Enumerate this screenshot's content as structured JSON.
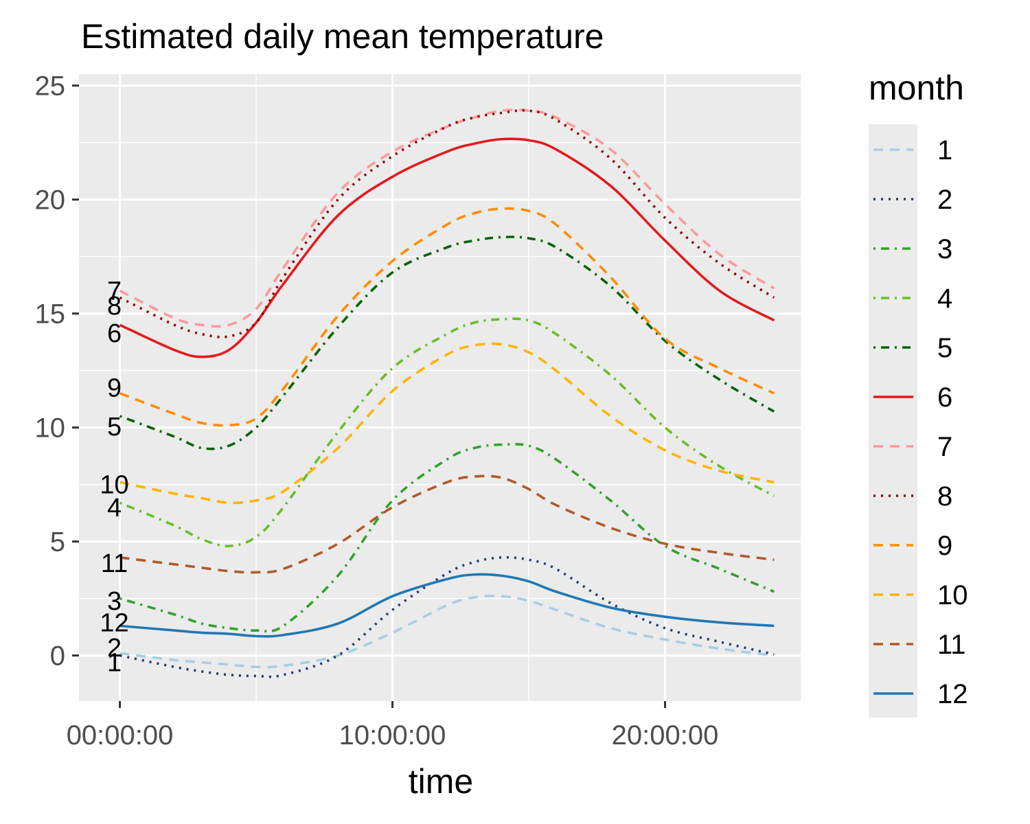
{
  "chart_data": {
    "type": "line",
    "title": "Estimated daily mean temperature",
    "xlabel": "time",
    "ylabel": "",
    "x_unit": "hours",
    "xlim": [
      -1.5,
      25
    ],
    "ylim": [
      -2,
      25.5
    ],
    "y_ticks": [
      0,
      5,
      10,
      15,
      20,
      25
    ],
    "y_tick_labels": [
      "0",
      "5",
      "10",
      "15",
      "20",
      "25"
    ],
    "x_ticks": [
      0,
      10,
      20
    ],
    "x_tick_labels": [
      "00:00:00",
      "10:00:00",
      "20:00:00"
    ],
    "grid": true,
    "legend_title": "month",
    "legend_position": "right",
    "x": [
      0,
      2,
      3,
      4,
      5,
      6,
      8,
      10,
      12,
      13,
      14,
      15,
      16,
      18,
      20,
      22,
      24
    ],
    "series": [
      {
        "name": "1",
        "color": "#a6cee3",
        "dash": "long",
        "label": "1",
        "values": [
          0.1,
          -0.2,
          -0.3,
          -0.4,
          -0.5,
          -0.45,
          0.0,
          1.0,
          2.2,
          2.55,
          2.6,
          2.4,
          2.0,
          1.2,
          0.7,
          0.3,
          0.0
        ]
      },
      {
        "name": "2",
        "color": "#1f3b73",
        "dash": "dotted",
        "label": "2",
        "values": [
          0.0,
          -0.5,
          -0.7,
          -0.85,
          -0.9,
          -0.85,
          0.0,
          2.0,
          3.6,
          4.1,
          4.3,
          4.2,
          3.8,
          2.3,
          1.2,
          0.6,
          0.05
        ]
      },
      {
        "name": "3",
        "color": "#33a02c",
        "dash": "dashdot",
        "label": "3",
        "values": [
          2.5,
          1.8,
          1.4,
          1.2,
          1.1,
          1.3,
          3.5,
          6.8,
          8.6,
          9.1,
          9.25,
          9.2,
          8.6,
          6.8,
          4.8,
          3.8,
          2.8
        ]
      },
      {
        "name": "4",
        "color": "#66bf26",
        "dash": "dashdot",
        "label": "4",
        "values": [
          6.7,
          5.7,
          5.1,
          4.8,
          5.2,
          6.5,
          9.8,
          12.6,
          14.1,
          14.6,
          14.75,
          14.7,
          14.1,
          12.3,
          10.0,
          8.3,
          7.0
        ]
      },
      {
        "name": "5",
        "color": "#006400",
        "dash": "dashdot",
        "label": "5",
        "values": [
          10.5,
          9.6,
          9.1,
          9.2,
          10.0,
          11.4,
          14.4,
          16.8,
          17.9,
          18.2,
          18.35,
          18.3,
          17.9,
          16.2,
          13.8,
          12.1,
          10.7
        ]
      },
      {
        "name": "6",
        "color": "#e31a1c",
        "dash": "solid",
        "label": "6",
        "values": [
          14.5,
          13.4,
          13.1,
          13.4,
          14.6,
          16.3,
          19.3,
          21.0,
          22.1,
          22.45,
          22.65,
          22.6,
          22.2,
          20.6,
          18.2,
          16.0,
          14.7
        ]
      },
      {
        "name": "7",
        "color": "#fb9a99",
        "dash": "long",
        "label": "7",
        "values": [
          16.0,
          14.8,
          14.5,
          14.5,
          15.2,
          17.0,
          20.3,
          22.1,
          23.2,
          23.6,
          23.9,
          23.9,
          23.6,
          22.2,
          19.8,
          17.6,
          16.1
        ]
      },
      {
        "name": "8",
        "color": "#8b0000",
        "dash": "dotted",
        "label": "8",
        "values": [
          15.7,
          14.5,
          14.1,
          14.0,
          14.6,
          16.6,
          20.0,
          21.9,
          23.2,
          23.6,
          23.8,
          23.9,
          23.5,
          21.8,
          19.2,
          17.2,
          15.7
        ]
      },
      {
        "name": "9",
        "color": "#ff8c00",
        "dash": "long",
        "label": "9",
        "values": [
          11.5,
          10.6,
          10.2,
          10.1,
          10.4,
          11.7,
          14.9,
          17.3,
          18.9,
          19.4,
          19.6,
          19.5,
          18.9,
          16.6,
          13.9,
          12.6,
          11.5
        ]
      },
      {
        "name": "10",
        "color": "#ffb300",
        "dash": "long",
        "label": "10",
        "values": [
          7.6,
          7.1,
          6.9,
          6.7,
          6.8,
          7.2,
          9.1,
          11.6,
          13.2,
          13.6,
          13.65,
          13.3,
          12.5,
          10.5,
          9.0,
          8.1,
          7.6
        ]
      },
      {
        "name": "11",
        "color": "#b15928",
        "dash": "long",
        "label": "11",
        "values": [
          4.3,
          4.0,
          3.85,
          3.7,
          3.65,
          3.8,
          4.9,
          6.5,
          7.6,
          7.85,
          7.8,
          7.3,
          6.6,
          5.6,
          4.9,
          4.5,
          4.2
        ]
      },
      {
        "name": "12",
        "color": "#1f78b4",
        "dash": "solid",
        "label": "12",
        "values": [
          1.3,
          1.1,
          1.0,
          0.95,
          0.85,
          0.9,
          1.4,
          2.6,
          3.35,
          3.55,
          3.5,
          3.25,
          2.8,
          2.1,
          1.7,
          1.45,
          1.3
        ]
      }
    ],
    "end_labels": [
      {
        "text": "7",
        "y": 16.0
      },
      {
        "text": "8",
        "y": 15.35
      },
      {
        "text": "6",
        "y": 14.15
      },
      {
        "text": "9",
        "y": 11.75
      },
      {
        "text": "5",
        "y": 10.05
      },
      {
        "text": "10",
        "y": 7.5
      },
      {
        "text": "4",
        "y": 6.5
      },
      {
        "text": "11",
        "y": 4.05
      },
      {
        "text": "3",
        "y": 2.4
      },
      {
        "text": "12",
        "y": 1.45
      },
      {
        "text": "2",
        "y": 0.35
      },
      {
        "text": "1",
        "y": -0.3
      }
    ]
  }
}
